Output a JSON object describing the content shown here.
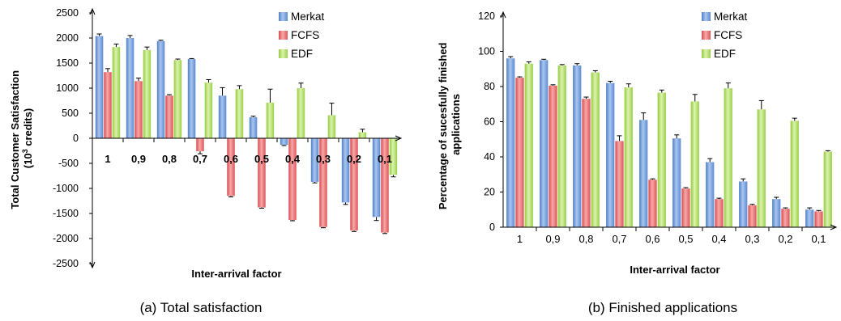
{
  "chart_data": [
    {
      "type": "bar",
      "id": "satisfaction",
      "caption": "(a) Total satisfaction",
      "xlabel": "Inter-arrival factor",
      "ylabel_line1": "Total Customer Satisfaction",
      "ylabel_line2_base": "(10",
      "ylabel_line2_sup": "3",
      "ylabel_line2_rest": " credits)",
      "ylim": [
        -2500,
        2500
      ],
      "yticks": [
        -2500,
        -2000,
        -1500,
        -1000,
        -500,
        0,
        500,
        1000,
        1500,
        2000,
        2500
      ],
      "categories": [
        "1",
        "0,9",
        "0,8",
        "0,7",
        "0,6",
        "0,5",
        "0,4",
        "0,3",
        "0,2",
        "0,1"
      ],
      "category_labels_bold": true,
      "legend": "top-right",
      "grid": false,
      "series": [
        {
          "name": "Merkat",
          "values": [
            2040,
            2000,
            1940,
            1580,
            850,
            420,
            -130,
            -870,
            -1280,
            -1570
          ],
          "errors": [
            40,
            50,
            15,
            10,
            160,
            20,
            15,
            20,
            40,
            70
          ]
        },
        {
          "name": "FCFS",
          "values": [
            1320,
            1140,
            850,
            -260,
            -1150,
            -1380,
            -1630,
            -1770,
            -1840,
            -1880
          ],
          "errors": [
            70,
            60,
            20,
            50,
            20,
            15,
            15,
            15,
            20,
            20
          ]
        },
        {
          "name": "EDF",
          "values": [
            1820,
            1760,
            1560,
            1110,
            980,
            710,
            1000,
            460,
            120,
            -730
          ],
          "errors": [
            60,
            60,
            20,
            60,
            70,
            270,
            100,
            240,
            60,
            40
          ]
        }
      ]
    },
    {
      "type": "bar",
      "id": "finished",
      "caption": "(b) Finished applications",
      "xlabel": "Inter-arrival factor",
      "ylabel_line1": "Percentage of sucesfully finished",
      "ylabel_line2": "applications",
      "ylim": [
        0,
        120
      ],
      "yticks": [
        0,
        20,
        40,
        60,
        80,
        100,
        120
      ],
      "categories": [
        "1",
        "0,9",
        "0,8",
        "0,7",
        "0,6",
        "0,5",
        "0,4",
        "0,3",
        "0,2",
        "0,1"
      ],
      "category_labels_bold": false,
      "legend": "top-right",
      "grid": false,
      "series": [
        {
          "name": "Merkat",
          "values": [
            96,
            95,
            92,
            82,
            61,
            50.5,
            37,
            26,
            16,
            10
          ],
          "errors": [
            1,
            0.5,
            1,
            1,
            4,
            2,
            2,
            1.5,
            1,
            1
          ]
        },
        {
          "name": "FCFS",
          "values": [
            85,
            80.5,
            73,
            49,
            27,
            22,
            16,
            12.5,
            10.5,
            9
          ],
          "errors": [
            0.5,
            0.5,
            1,
            3,
            0.5,
            0.5,
            0.5,
            0.5,
            0.5,
            0.5
          ]
        },
        {
          "name": "EDF",
          "values": [
            93,
            92,
            88,
            79.5,
            76.5,
            71.5,
            79,
            67,
            60.5,
            43
          ],
          "errors": [
            1,
            0.5,
            1,
            2,
            1.5,
            4,
            3,
            5,
            1.5,
            0.5
          ]
        }
      ]
    }
  ],
  "colors": {
    "merkat": "#6f9bd9",
    "fcfs": "#e8686a",
    "edf": "#aedc5c"
  }
}
